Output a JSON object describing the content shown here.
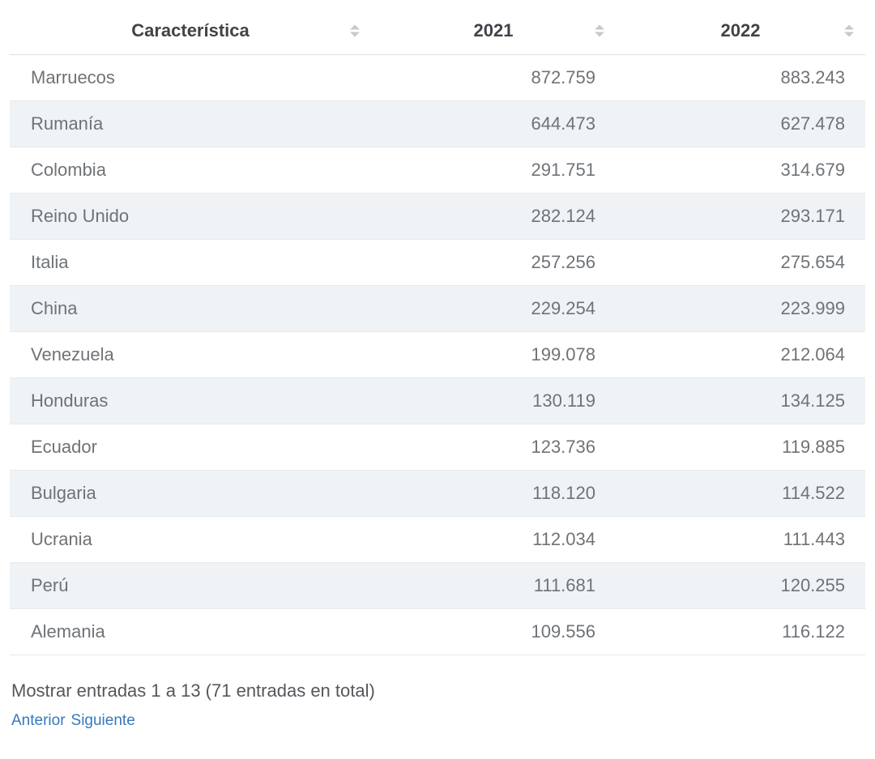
{
  "table": {
    "columns": [
      {
        "label": "Característica",
        "sortable": true
      },
      {
        "label": "2021",
        "sortable": true
      },
      {
        "label": "2022",
        "sortable": true
      }
    ],
    "rows": [
      {
        "name": "Marruecos",
        "v2021": "872.759",
        "v2022": "883.243"
      },
      {
        "name": "Rumanía",
        "v2021": "644.473",
        "v2022": "627.478"
      },
      {
        "name": "Colombia",
        "v2021": "291.751",
        "v2022": "314.679"
      },
      {
        "name": "Reino Unido",
        "v2021": "282.124",
        "v2022": "293.171"
      },
      {
        "name": "Italia",
        "v2021": "257.256",
        "v2022": "275.654"
      },
      {
        "name": "China",
        "v2021": "229.254",
        "v2022": "223.999"
      },
      {
        "name": "Venezuela",
        "v2021": "199.078",
        "v2022": "212.064"
      },
      {
        "name": "Honduras",
        "v2021": "130.119",
        "v2022": "134.125"
      },
      {
        "name": "Ecuador",
        "v2021": "123.736",
        "v2022": "119.885"
      },
      {
        "name": "Bulgaria",
        "v2021": "118.120",
        "v2022": "114.522"
      },
      {
        "name": "Ucrania",
        "v2021": "112.034",
        "v2022": "111.443"
      },
      {
        "name": "Perú",
        "v2021": "111.681",
        "v2022": "120.255"
      },
      {
        "name": "Alemania",
        "v2021": "109.556",
        "v2022": "116.122"
      }
    ]
  },
  "footer": {
    "summary": "Mostrar entradas 1 a 13 (71 entradas en total)",
    "prev_label": "Anterior",
    "next_label": "Siguiente"
  },
  "icons": {
    "sort": "sort-arrows-icon"
  },
  "colors": {
    "stripe_row_bg": "#f0f3f5",
    "row_border": "#e7e9eb",
    "header_border": "#dbdddf",
    "header_text": "#404348",
    "cell_text": "#6f7377",
    "summary_text": "#54575b",
    "link_blue": "#3579bd",
    "sort_icon_gray": "#c7c9cb"
  }
}
